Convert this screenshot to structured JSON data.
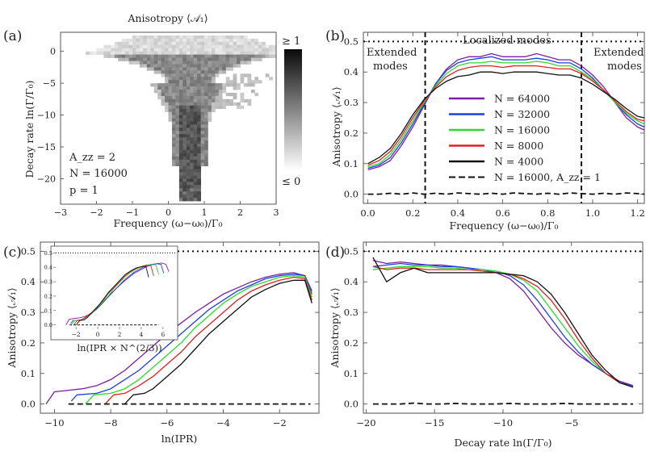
{
  "chart_data": [
    {
      "panel": "(a)",
      "type": "heatmap",
      "title": "Anisotropy ⟨𝒜₁⟩",
      "xlabel": "Frequency (ω−ω₀)/Γ₀",
      "ylabel": "Decay rate ln(Γ/Γ₀)",
      "xlim": [
        -3,
        3
      ],
      "ylim": [
        -24,
        3
      ],
      "xticks": [
        "−3",
        "−2",
        "−1",
        "0",
        "1",
        "2",
        "3"
      ],
      "yticks": [
        "0",
        "−5",
        "−10",
        "−15",
        "−20"
      ],
      "colorbar": {
        "top": "≥ 1",
        "bottom": "≤ 0"
      },
      "annotations": [
        "A_zz = 2",
        "N = 16000",
        "p = 1"
      ]
    },
    {
      "panel": "(b)",
      "type": "line",
      "xlabel": "Frequency (ω−ω₀)/Γ₀",
      "ylabel": "Anisotropy ⟨𝒜₁⟩",
      "xlim": [
        -0.02,
        1.23
      ],
      "ylim": [
        -0.03,
        0.53
      ],
      "xticks": [
        0.0,
        0.2,
        0.4,
        0.6,
        0.8,
        1.0,
        1.2
      ],
      "yticks": [
        0.0,
        0.1,
        0.2,
        0.3,
        0.4,
        0.5
      ],
      "hline": 0.5,
      "vlines": [
        0.255,
        0.95
      ],
      "annotations": [
        "Extended",
        "modes",
        "Localized modes",
        "Extended",
        "modes"
      ],
      "x": [
        0.0,
        0.05,
        0.1,
        0.15,
        0.2,
        0.25,
        0.3,
        0.35,
        0.4,
        0.45,
        0.5,
        0.55,
        0.6,
        0.65,
        0.7,
        0.75,
        0.8,
        0.85,
        0.9,
        0.95,
        1.0,
        1.05,
        1.1,
        1.15,
        1.2,
        1.23
      ],
      "series": [
        {
          "name": "N = 64000",
          "color": "#7b1fa2",
          "values": [
            0.08,
            0.09,
            0.11,
            0.16,
            0.22,
            0.29,
            0.36,
            0.41,
            0.44,
            0.45,
            0.45,
            0.46,
            0.45,
            0.45,
            0.45,
            0.46,
            0.45,
            0.44,
            0.44,
            0.42,
            0.39,
            0.35,
            0.3,
            0.25,
            0.22,
            0.21
          ]
        },
        {
          "name": "N = 32000",
          "color": "#1f3fd9",
          "values": [
            0.085,
            0.095,
            0.12,
            0.17,
            0.23,
            0.295,
            0.36,
            0.405,
            0.43,
            0.44,
            0.445,
            0.45,
            0.44,
            0.44,
            0.44,
            0.445,
            0.44,
            0.43,
            0.43,
            0.41,
            0.38,
            0.34,
            0.3,
            0.26,
            0.23,
            0.22
          ]
        },
        {
          "name": "N = 16000",
          "color": "#2ed82e",
          "values": [
            0.09,
            0.1,
            0.13,
            0.18,
            0.24,
            0.3,
            0.355,
            0.395,
            0.42,
            0.43,
            0.43,
            0.435,
            0.43,
            0.43,
            0.43,
            0.435,
            0.43,
            0.42,
            0.42,
            0.4,
            0.375,
            0.34,
            0.3,
            0.265,
            0.24,
            0.23
          ]
        },
        {
          "name": "N = 8000",
          "color": "#e02020",
          "values": [
            0.095,
            0.11,
            0.14,
            0.19,
            0.25,
            0.305,
            0.35,
            0.385,
            0.405,
            0.415,
            0.42,
            0.42,
            0.415,
            0.42,
            0.42,
            0.42,
            0.415,
            0.41,
            0.41,
            0.395,
            0.37,
            0.34,
            0.305,
            0.27,
            0.245,
            0.24
          ]
        },
        {
          "name": "N = 4000",
          "color": "#111111",
          "values": [
            0.1,
            0.12,
            0.15,
            0.2,
            0.26,
            0.31,
            0.345,
            0.37,
            0.385,
            0.39,
            0.4,
            0.4,
            0.395,
            0.4,
            0.4,
            0.4,
            0.395,
            0.39,
            0.39,
            0.38,
            0.36,
            0.335,
            0.31,
            0.28,
            0.255,
            0.25
          ]
        },
        {
          "name": "N = 16000,  A_zz = 1",
          "color": "#111111",
          "dashed": true,
          "values": [
            0.0,
            0.0,
            0.003,
            0.0,
            0.004,
            0.0,
            0.003,
            0.0,
            0.004,
            0.002,
            0.0,
            0.003,
            0.0,
            0.004,
            0.002,
            0.0,
            0.003,
            0.0,
            0.004,
            0.002,
            0.0,
            0.003,
            0.0,
            0.004,
            0.002,
            0.0
          ]
        }
      ]
    },
    {
      "panel": "(c)",
      "type": "line",
      "xlabel": "ln(IPR)",
      "ylabel": "Anisotropy ⟨𝒜₁⟩",
      "xlim": [
        -10.5,
        -0.6
      ],
      "ylim": [
        -0.03,
        0.53
      ],
      "xticks": [
        -10,
        -8,
        -6,
        -4,
        -2
      ],
      "yticks": [
        0.0,
        0.1,
        0.2,
        0.3,
        0.4,
        0.5
      ],
      "hline": 0.5,
      "inset": {
        "xlabel": "ln(IPR × N^(2/3))",
        "xticks": [
          -2,
          0,
          2,
          4,
          6
        ],
        "yticks": [
          0.0,
          0.1,
          0.2,
          0.3,
          0.4,
          0.5
        ],
        "xlim": [
          -3.2,
          7.2
        ],
        "ylim": [
          -0.03,
          0.53
        ]
      },
      "series": [
        {
          "name": "N = 64000",
          "color": "#7b1fa2",
          "x": [
            -10.3,
            -10.0,
            -9.5,
            -9.0,
            -8.5,
            -8.0,
            -7.5,
            -7.0,
            -6.5,
            -6.0,
            -5.5,
            -5.0,
            -4.5,
            -4.0,
            -3.5,
            -3.0,
            -2.5,
            -2.0,
            -1.5,
            -1.1,
            -0.85
          ],
          "values": [
            0.0,
            0.04,
            0.045,
            0.05,
            0.06,
            0.08,
            0.11,
            0.15,
            0.19,
            0.23,
            0.265,
            0.3,
            0.33,
            0.36,
            0.38,
            0.4,
            0.415,
            0.425,
            0.43,
            0.42,
            0.37
          ]
        },
        {
          "name": "N = 32000",
          "color": "#1f3fd9",
          "x": [
            -9.4,
            -9.2,
            -8.5,
            -8.0,
            -7.5,
            -7.0,
            -6.5,
            -6.0,
            -5.5,
            -5.0,
            -4.5,
            -4.0,
            -3.5,
            -3.0,
            -2.5,
            -2.0,
            -1.5,
            -1.1,
            -0.85
          ],
          "values": [
            0.01,
            0.03,
            0.035,
            0.05,
            0.08,
            0.11,
            0.15,
            0.19,
            0.23,
            0.27,
            0.31,
            0.34,
            0.37,
            0.39,
            0.41,
            0.42,
            0.425,
            0.42,
            0.36
          ]
        },
        {
          "name": "N = 16000",
          "color": "#2ed82e",
          "x": [
            -8.9,
            -8.6,
            -8.0,
            -7.5,
            -7.0,
            -6.5,
            -6.0,
            -5.5,
            -5.0,
            -4.5,
            -4.0,
            -3.5,
            -3.0,
            -2.5,
            -2.0,
            -1.5,
            -1.1,
            -0.85
          ],
          "values": [
            0.0,
            0.03,
            0.035,
            0.05,
            0.08,
            0.12,
            0.16,
            0.2,
            0.25,
            0.29,
            0.33,
            0.36,
            0.385,
            0.4,
            0.415,
            0.42,
            0.415,
            0.35
          ]
        },
        {
          "name": "N = 8000",
          "color": "#e02020",
          "x": [
            -8.2,
            -7.9,
            -7.5,
            -7.0,
            -6.5,
            -6.0,
            -5.5,
            -5.0,
            -4.5,
            -4.0,
            -3.5,
            -3.0,
            -2.5,
            -2.0,
            -1.5,
            -1.1,
            -0.85
          ],
          "values": [
            0.0,
            0.03,
            0.035,
            0.06,
            0.09,
            0.13,
            0.17,
            0.22,
            0.26,
            0.3,
            0.34,
            0.37,
            0.39,
            0.405,
            0.415,
            0.41,
            0.34
          ]
        },
        {
          "name": "N = 4000",
          "color": "#111111",
          "x": [
            -7.5,
            -7.2,
            -6.8,
            -6.5,
            -6.0,
            -5.5,
            -5.0,
            -4.5,
            -4.0,
            -3.5,
            -3.0,
            -2.5,
            -2.0,
            -1.5,
            -1.1,
            -0.85
          ],
          "values": [
            0.0,
            0.03,
            0.035,
            0.05,
            0.09,
            0.13,
            0.18,
            0.23,
            0.27,
            0.31,
            0.35,
            0.375,
            0.395,
            0.405,
            0.405,
            0.33
          ]
        },
        {
          "name": "N = 16000,  A_zz = 1",
          "color": "#111111",
          "dashed": true,
          "x": [
            -9.5,
            -0.9
          ],
          "values": [
            0.0,
            0.0
          ]
        }
      ]
    },
    {
      "panel": "(d)",
      "type": "line",
      "xlabel": "Decay rate ln(Γ/Γ₀)",
      "ylabel": "Anisotropy ⟨𝒜₁⟩",
      "xlim": [
        -20.2,
        0.2
      ],
      "ylim": [
        -0.03,
        0.53
      ],
      "xticks": [
        -20,
        -15,
        -10,
        -5
      ],
      "yticks": [
        0.0,
        0.1,
        0.2,
        0.3,
        0.4,
        0.5
      ],
      "hline": 0.5,
      "x": [
        -19.5,
        -18.5,
        -17.5,
        -16.5,
        -15.5,
        -14.5,
        -13.5,
        -12.5,
        -11.5,
        -10.5,
        -9.5,
        -8.5,
        -7.5,
        -6.5,
        -5.5,
        -4.5,
        -3.5,
        -2.5,
        -1.5,
        -0.5
      ],
      "series": [
        {
          "name": "N = 64000",
          "color": "#7b1fa2",
          "values": [
            0.47,
            0.46,
            0.465,
            0.46,
            0.455,
            0.455,
            0.45,
            0.445,
            0.44,
            0.43,
            0.41,
            0.37,
            0.31,
            0.25,
            0.2,
            0.16,
            0.13,
            0.1,
            0.075,
            0.06
          ]
        },
        {
          "name": "N = 32000",
          "color": "#1f3fd9",
          "values": [
            0.45,
            0.455,
            0.46,
            0.455,
            0.455,
            0.45,
            0.45,
            0.445,
            0.44,
            0.435,
            0.42,
            0.39,
            0.34,
            0.28,
            0.22,
            0.17,
            0.13,
            0.1,
            0.07,
            0.06
          ]
        },
        {
          "name": "N = 16000",
          "color": "#2ed82e",
          "values": [
            0.44,
            0.445,
            0.45,
            0.45,
            0.45,
            0.445,
            0.445,
            0.44,
            0.44,
            0.435,
            0.425,
            0.405,
            0.37,
            0.31,
            0.25,
            0.19,
            0.14,
            0.1,
            0.07,
            0.055
          ]
        },
        {
          "name": "N = 8000",
          "color": "#e02020",
          "values": [
            0.45,
            0.44,
            0.445,
            0.445,
            0.44,
            0.44,
            0.44,
            0.44,
            0.435,
            0.43,
            0.425,
            0.41,
            0.385,
            0.34,
            0.28,
            0.21,
            0.15,
            0.1,
            0.07,
            0.055
          ]
        },
        {
          "name": "N = 4000",
          "color": "#111111",
          "values": [
            0.48,
            0.4,
            0.43,
            0.445,
            0.43,
            0.43,
            0.43,
            0.43,
            0.43,
            0.43,
            0.425,
            0.42,
            0.4,
            0.36,
            0.3,
            0.23,
            0.16,
            0.11,
            0.07,
            0.055
          ]
        },
        {
          "name": "N = 16000,  A_zz = 1",
          "color": "#111111",
          "dashed": true,
          "values": [
            0.0,
            0.0,
            0.0,
            0.003,
            0.0,
            0.0,
            0.002,
            0.0,
            0.0,
            0.0,
            0.002,
            0.0,
            0.0,
            0.0,
            0.002,
            0.0,
            0.0,
            0.0,
            0.0,
            0.0
          ]
        }
      ]
    }
  ]
}
